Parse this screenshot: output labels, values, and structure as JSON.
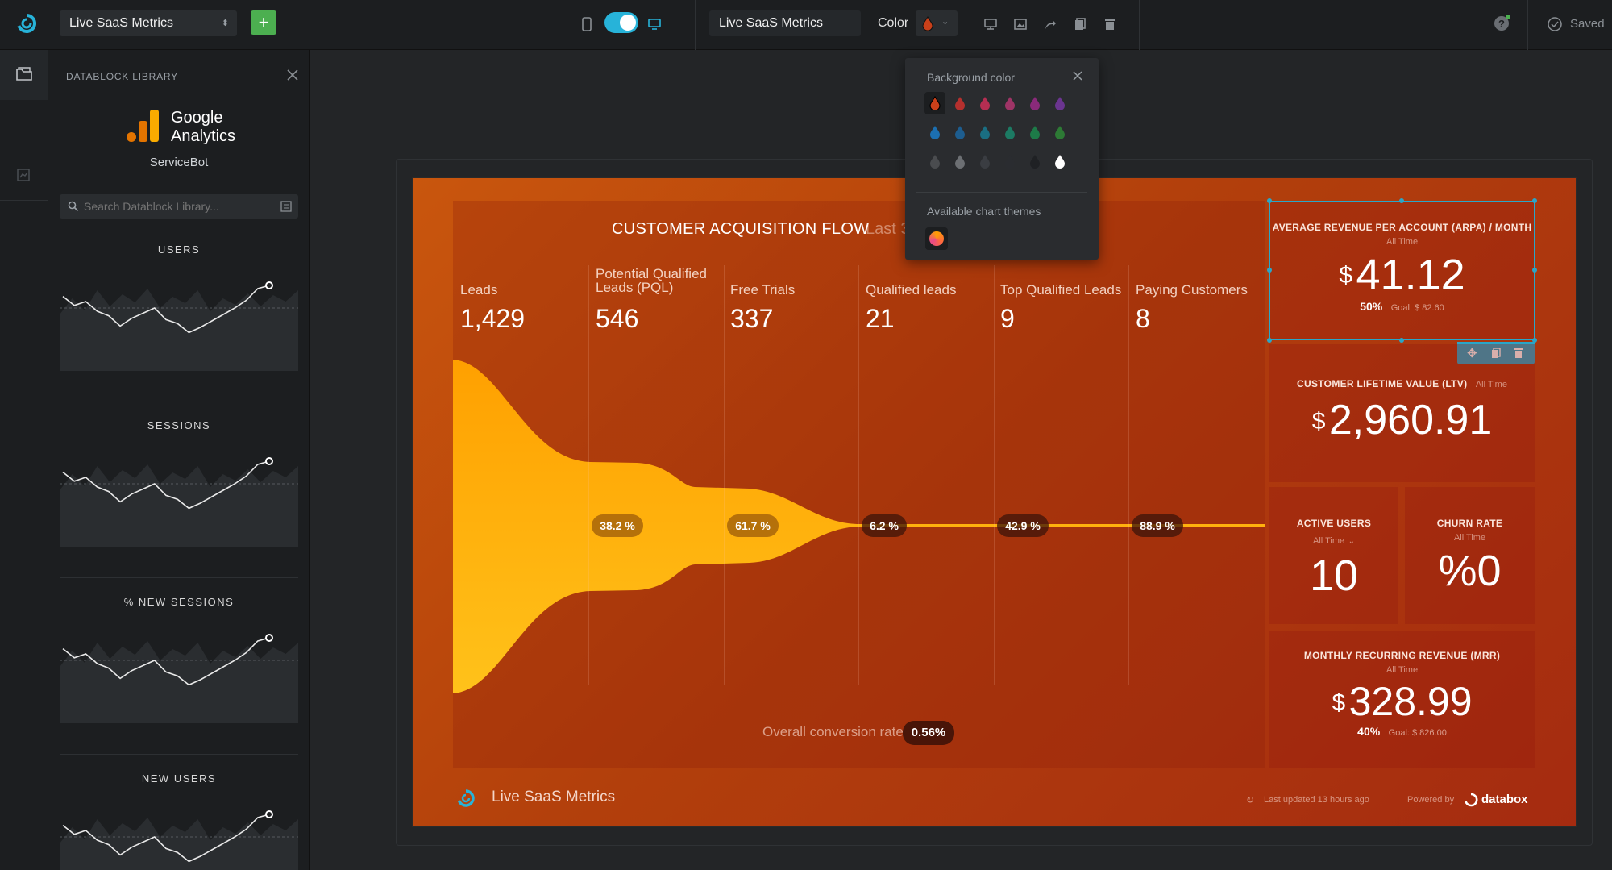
{
  "topbar": {
    "dashboard_select": "Live SaaS Metrics",
    "add_label": "+",
    "name_field": "Live SaaS Metrics",
    "color_label": "Color",
    "saved_label": "Saved"
  },
  "library": {
    "title": "DATABLOCK LIBRARY",
    "source_brand_line1": "Google",
    "source_brand_line2": "Analytics",
    "source_account": "ServiceBot",
    "search_placeholder": "Search Datablock Library...",
    "cards": [
      {
        "title": "USERS"
      },
      {
        "title": "SESSIONS"
      },
      {
        "title": "% NEW SESSIONS"
      },
      {
        "title": "NEW USERS"
      }
    ]
  },
  "popover": {
    "title": "Background color",
    "themes_title": "Available chart themes",
    "swatches": [
      [
        "#c9401a",
        "#b5302e",
        "#b52e52",
        "#9e3466",
        "#8a2a7a",
        "#6b3590"
      ],
      [
        "#1c6fb0",
        "#1d5d8f",
        "#1a6e82",
        "#1c7a63",
        "#1d7a48",
        "#2d7a35"
      ],
      [
        "#4a4c4f",
        "#6c6f73",
        "#3a3d42",
        "#2a2c30",
        "#1f2124",
        "#ffffff"
      ]
    ]
  },
  "funnel": {
    "title": "CUSTOMER ACQUISITION FLOW",
    "period": "Last 3",
    "overall_label": "Overall conversion rate",
    "overall_value": "0.56%",
    "stages": [
      {
        "label": "Leads",
        "value": "1,429"
      },
      {
        "label": "Potential Qualified Leads (PQL)",
        "value": "546"
      },
      {
        "label": "Free Trials",
        "value": "337"
      },
      {
        "label": "Qualified leads",
        "value": "21"
      },
      {
        "label": "Top Qualified Leads",
        "value": "9"
      },
      {
        "label": "Paying Customers",
        "value": "8"
      }
    ],
    "conversions": [
      "38.2 %",
      "61.7 %",
      "6.2 %",
      "42.9 %",
      "88.9 %"
    ]
  },
  "kpis": {
    "arpa": {
      "title": "AVERAGE REVENUE PER ACCOUNT (ARPA) / MONTH",
      "period": "All Time",
      "currency": "$",
      "value": "41.12",
      "pct": "50%",
      "goal": "Goal: $ 82.60"
    },
    "ltv": {
      "title": "CUSTOMER LIFETIME VALUE (LTV)",
      "period": "All Time",
      "currency": "$",
      "value": "2,960.91"
    },
    "active_users": {
      "title": "ACTIVE USERS",
      "period": "All Time",
      "value": "10"
    },
    "churn": {
      "title": "CHURN RATE",
      "period": "All Time",
      "value": "%0"
    },
    "mrr": {
      "title": "MONTHLY RECURRING REVENUE (MRR)",
      "period": "All Time",
      "currency": "$",
      "value": "328.99",
      "pct": "40%",
      "goal": "Goal: $ 826.00"
    }
  },
  "footer": {
    "dashboard_name": "Live SaaS Metrics",
    "updated": "Last updated 13 hours ago",
    "powered_by": "Powered by",
    "brand": "databox"
  }
}
